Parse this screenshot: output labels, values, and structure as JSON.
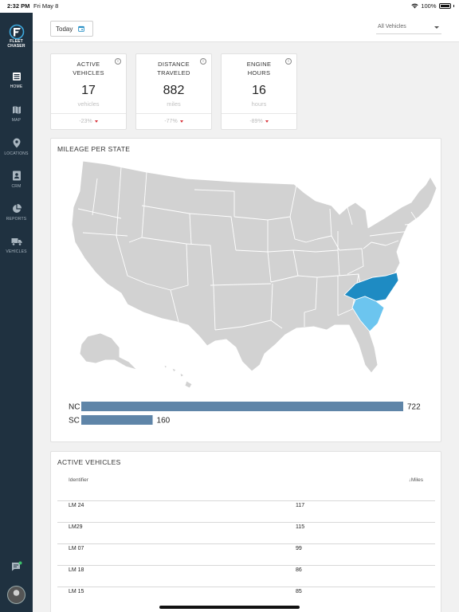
{
  "status_bar": {
    "time": "2:32 PM",
    "date": "Fri May 8",
    "battery": "100%"
  },
  "brand": {
    "line1": "FLEET",
    "line2": "CHASER"
  },
  "sidebar": {
    "items": [
      {
        "label": "HOME",
        "icon": "home-icon"
      },
      {
        "label": "MAP",
        "icon": "map-icon"
      },
      {
        "label": "LOCATIONS",
        "icon": "location-pin-icon"
      },
      {
        "label": "CRM",
        "icon": "contacts-icon"
      },
      {
        "label": "REPORTS",
        "icon": "pie-chart-icon"
      },
      {
        "label": "VEHICLES",
        "icon": "truck-icon"
      }
    ]
  },
  "header": {
    "today_label": "Today",
    "vehicle_filter": "All Vehicles"
  },
  "stats": [
    {
      "line1": "ACTIVE",
      "line2": "VEHICLES",
      "value": "17",
      "unit": "vehicles",
      "change": "-23%"
    },
    {
      "line1": "DISTANCE",
      "line2": "TRAVELED",
      "value": "882",
      "unit": "miles",
      "change": "-77%"
    },
    {
      "line1": "ENGINE",
      "line2": "HOURS",
      "value": "16",
      "unit": "hours",
      "change": "-89%"
    }
  ],
  "mileage": {
    "title": "MILEAGE PER STATE"
  },
  "chart_data": {
    "type": "bar",
    "categories": [
      "NC",
      "SC"
    ],
    "values": [
      722,
      160
    ],
    "xlim": [
      0,
      722
    ],
    "bar_color": "#5f85a8",
    "highlight_colors": {
      "NC": "#1e8bc3",
      "SC": "#6cc5ef"
    }
  },
  "active_vehicles": {
    "title": "ACTIVE VEHICLES",
    "col_identifier": "Identifier",
    "col_miles": "Miles",
    "rows": [
      {
        "id": "LM 24",
        "miles": "117"
      },
      {
        "id": "LM29",
        "miles": "115"
      },
      {
        "id": "LM 07",
        "miles": "99"
      },
      {
        "id": "LM 18",
        "miles": "86"
      },
      {
        "id": "LM 15",
        "miles": "85"
      }
    ]
  },
  "colors": {
    "sidebar": "#1f3140",
    "accent": "#1e8bc3",
    "negative": "#d8343c"
  }
}
